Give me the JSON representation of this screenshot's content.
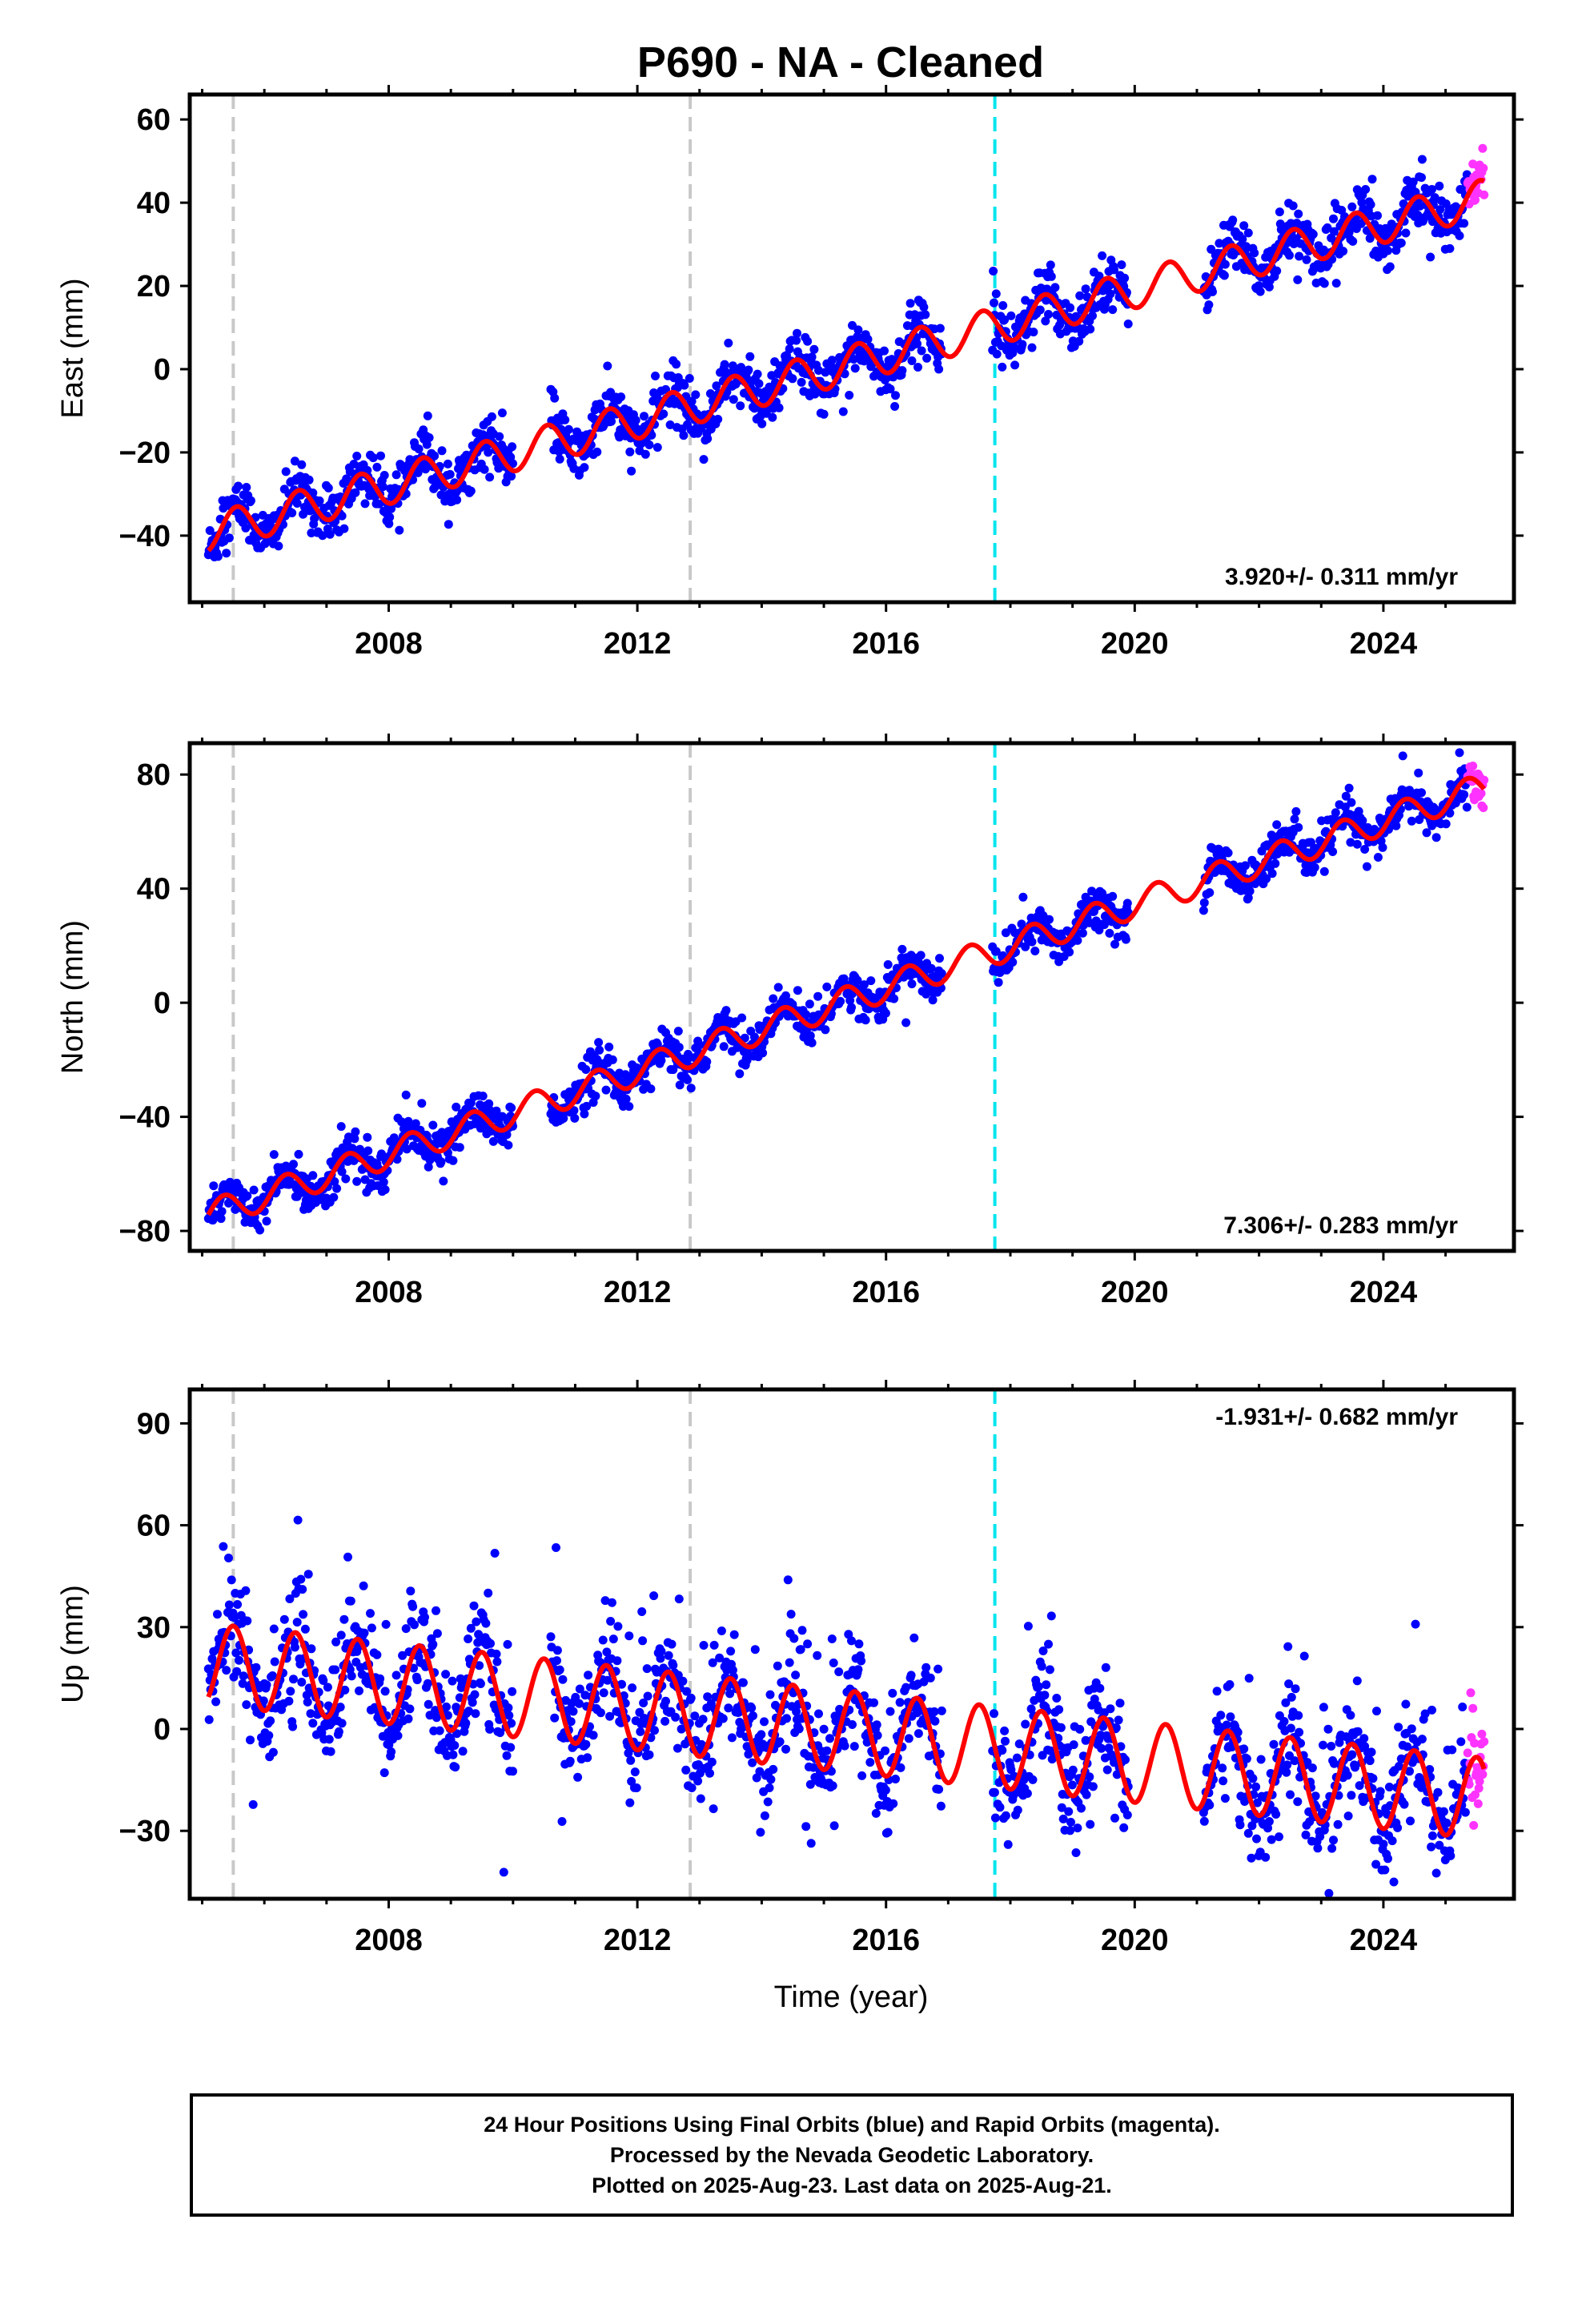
{
  "figure_title": "P690  - NA - Cleaned",
  "x_axis_label": "Time (year)",
  "footer": {
    "line1": "24 Hour Positions Using Final Orbits (blue) and Rapid Orbits (magenta).",
    "line2": "Processed by the Nevada Geodetic Laboratory.",
    "line3": "Plotted on 2025-Aug-23. Last data on 2025-Aug-21."
  },
  "colors": {
    "final_orbits": "#0000ff",
    "rapid_orbits": "#ff33ff",
    "model_fit": "#ff0000",
    "event_line_gray": "#c8c8c8",
    "event_line_cyan": "#00e5ee"
  },
  "chart_data": [
    {
      "type": "scatter",
      "name": "east",
      "ylabel": "East (mm)",
      "rate_label": "3.920+/- 0.311 mm/yr",
      "rate_position": "bottom-right",
      "xlim": [
        2004.8,
        2026.1
      ],
      "ylim": [
        -56,
        66
      ],
      "x_ticks": [
        2008,
        2012,
        2016,
        2020,
        2024
      ],
      "y_ticks": [
        -40,
        -20,
        0,
        20,
        40,
        60
      ],
      "y_tick_labels": [
        "−40",
        "−20",
        "0",
        "20",
        "40",
        "60"
      ],
      "event_lines": [
        {
          "x": 2005.5,
          "style": "gray-dashed"
        },
        {
          "x": 2012.85,
          "style": "gray-dashed"
        },
        {
          "x": 2017.75,
          "style": "cyan-dashed"
        }
      ],
      "trend": {
        "rate": 3.92,
        "ref_year": 2015.0,
        "offset": -0.5
      },
      "seasonal": {
        "amplitude": 4.5,
        "phase": 0.3,
        "noise": 3.2
      },
      "data_gaps": [
        [
          2010.0,
          2010.6
        ],
        [
          2016.9,
          2017.7
        ],
        [
          2019.9,
          2021.1
        ]
      ],
      "fit_line": "red sinusoid plus linear trend"
    },
    {
      "type": "scatter",
      "name": "north",
      "ylabel": "North (mm)",
      "rate_label": "7.306+/- 0.283 mm/yr",
      "rate_position": "bottom-right",
      "xlim": [
        2004.8,
        2026.1
      ],
      "ylim": [
        -87,
        91
      ],
      "x_ticks": [
        2008,
        2012,
        2016,
        2020,
        2024
      ],
      "y_ticks": [
        -80,
        -40,
        0,
        40,
        80
      ],
      "y_tick_labels": [
        "−80",
        "−40",
        "0",
        "40",
        "80"
      ],
      "event_lines": [
        {
          "x": 2005.5,
          "style": "gray-dashed"
        },
        {
          "x": 2012.85,
          "style": "gray-dashed"
        },
        {
          "x": 2017.75,
          "style": "cyan-dashed"
        }
      ],
      "trend": {
        "rate": 7.306,
        "ref_year": 2015.0,
        "offset": -2.0
      },
      "seasonal": {
        "amplitude": 5.0,
        "phase": 0.1,
        "noise": 3.5
      },
      "data_gaps": [
        [
          2010.0,
          2010.6
        ],
        [
          2016.9,
          2017.7
        ],
        [
          2019.9,
          2021.1
        ]
      ],
      "fit_line": "red sinusoid plus linear trend"
    },
    {
      "type": "scatter",
      "name": "up",
      "ylabel": "Up (mm)",
      "rate_label": "-1.931+/- 0.682 mm/yr",
      "rate_position": "top-right",
      "xlim": [
        2004.8,
        2026.1
      ],
      "ylim": [
        -50,
        100
      ],
      "x_ticks": [
        2008,
        2012,
        2016,
        2020,
        2024
      ],
      "y_ticks": [
        -30,
        0,
        30,
        60,
        90
      ],
      "y_tick_labels": [
        "−30",
        "0",
        "30",
        "60",
        "90"
      ],
      "event_lines": [
        {
          "x": 2005.5,
          "style": "gray-dashed"
        },
        {
          "x": 2012.85,
          "style": "gray-dashed"
        },
        {
          "x": 2017.75,
          "style": "cyan-dashed"
        }
      ],
      "trend": {
        "rate": -1.931,
        "ref_year": 2015.0,
        "offset": 0.0
      },
      "seasonal": {
        "amplitude": 12.0,
        "phase": 0.25,
        "noise": 8.0
      },
      "data_gaps": [
        [
          2010.0,
          2010.6
        ],
        [
          2016.9,
          2017.7
        ],
        [
          2019.9,
          2021.1
        ]
      ],
      "fit_line": "red sinusoid plus linear trend"
    }
  ]
}
